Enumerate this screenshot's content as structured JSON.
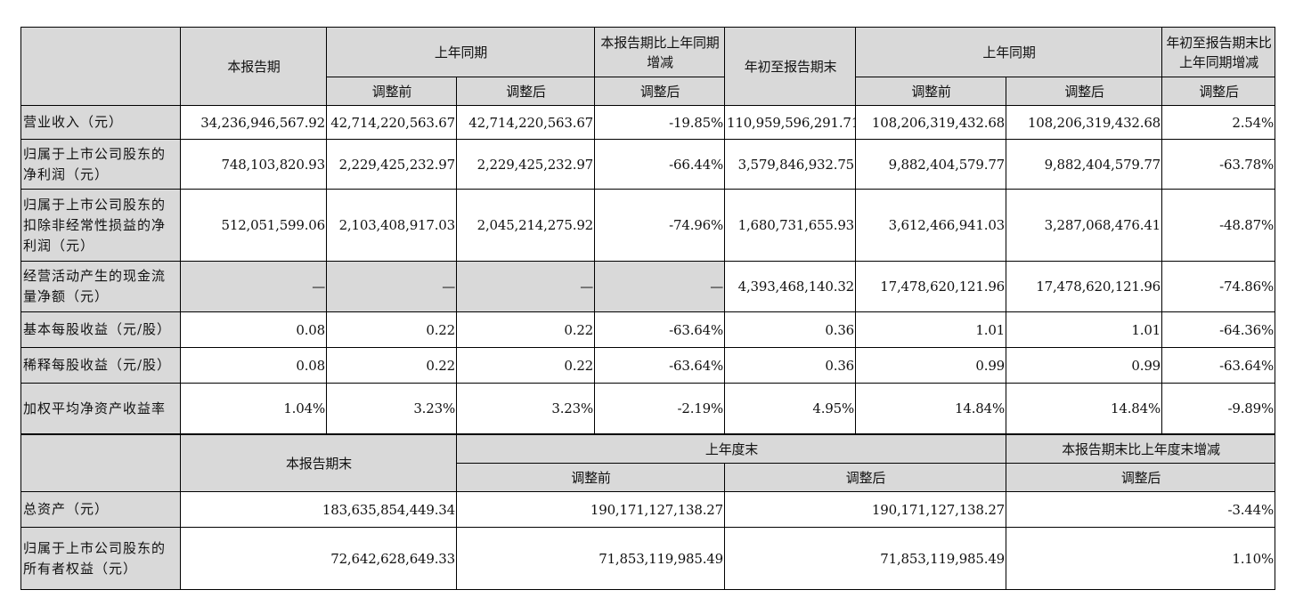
{
  "quarter_table": {
    "header": {
      "current_period": "本报告期",
      "prior_same_period": "上年同期",
      "period_change": "本报告期比上年同期增减",
      "ytd": "年初至报告期末",
      "ytd_prior_same_period": "上年同期",
      "ytd_change": "年初至报告期末比上年同期增减",
      "before_adjust": "调整前",
      "after_adjust": "调整后",
      "change_after_adjust": "调整后",
      "ytd_before_adjust": "调整前",
      "ytd_after_adjust": "调整后",
      "ytd_change_after_adjust": "调整后"
    },
    "rows": [
      {
        "label": "营业收入（元）",
        "cur": "34,236,946,567.92",
        "prior_before": "42,714,220,563.67",
        "prior_after": "42,714,220,563.67",
        "chg": "-19.85%",
        "ytd": "110,959,596,291.71",
        "ytd_before": "108,206,319,432.68",
        "ytd_after": "108,206,319,432.68",
        "ytd_chg": "2.54%"
      },
      {
        "label": "归属于上市公司股东的净利润（元）",
        "cur": "748,103,820.93",
        "prior_before": "2,229,425,232.97",
        "prior_after": "2,229,425,232.97",
        "chg": "-66.44%",
        "ytd": "3,579,846,932.75",
        "ytd_before": "9,882,404,579.77",
        "ytd_after": "9,882,404,579.77",
        "ytd_chg": "-63.78%"
      },
      {
        "label": "归属于上市公司股东的扣除非经常性损益的净利润（元）",
        "cur": "512,051,599.06",
        "prior_before": "2,103,408,917.03",
        "prior_after": "2,045,214,275.92",
        "chg": "-74.96%",
        "ytd": "1,680,731,655.93",
        "ytd_before": "3,612,466,941.03",
        "ytd_after": "3,287,068,476.41",
        "ytd_chg": "-48.87%"
      },
      {
        "label": "经营活动产生的现金流量净额（元）",
        "cur": "—",
        "prior_before": "—",
        "prior_after": "—",
        "chg": "—",
        "ytd": "4,393,468,140.32",
        "ytd_before": "17,478,620,121.96",
        "ytd_after": "17,478,620,121.96",
        "ytd_chg": "-74.86%"
      },
      {
        "label": "基本每股收益（元/股）",
        "cur": "0.08",
        "prior_before": "0.22",
        "prior_after": "0.22",
        "chg": "-63.64%",
        "ytd": "0.36",
        "ytd_before": "1.01",
        "ytd_after": "1.01",
        "ytd_chg": "-64.36%"
      },
      {
        "label": "稀释每股收益（元/股）",
        "cur": "0.08",
        "prior_before": "0.22",
        "prior_after": "0.22",
        "chg": "-63.64%",
        "ytd": "0.36",
        "ytd_before": "0.99",
        "ytd_after": "0.99",
        "ytd_chg": "-63.64%"
      },
      {
        "label": "加权平均净资产收益率",
        "cur": "1.04%",
        "prior_before": "3.23%",
        "prior_after": "3.23%",
        "chg": "-2.19%",
        "ytd": "4.95%",
        "ytd_before": "14.84%",
        "ytd_after": "14.84%",
        "ytd_chg": "-9.89%"
      }
    ]
  },
  "balance_table": {
    "header": {
      "period_end": "本报告期末",
      "prior_year_end": "上年度末",
      "change": "本报告期末比上年度末增减",
      "before_adjust": "调整前",
      "after_adjust": "调整后",
      "change_after_adjust": "调整后"
    },
    "rows": [
      {
        "label": "总资产（元）",
        "cur": "183,635,854,449.34",
        "before": "190,171,127,138.27",
        "after": "190,171,127,138.27",
        "chg": "-3.44%"
      },
      {
        "label": "归属于上市公司股东的所有者权益（元）",
        "cur": "72,642,628,649.33",
        "before": "71,853,119,985.49",
        "after": "71,853,119,985.49",
        "chg": "1.10%"
      }
    ]
  }
}
